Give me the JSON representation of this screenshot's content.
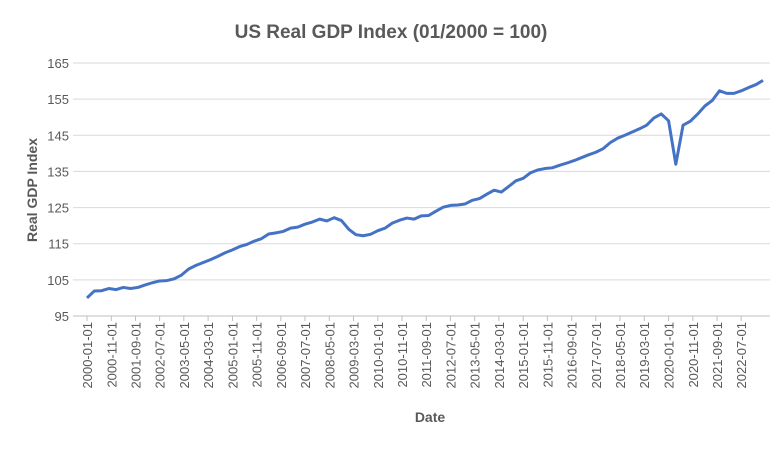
{
  "chart_data": {
    "type": "line",
    "title": "US Real GDP Index (01/2000 = 100)",
    "x_label": "Date",
    "y_label": "Real GDP Index",
    "x": [
      "2000-01-01",
      "2000-04-01",
      "2000-07-01",
      "2000-10-01",
      "2001-01-01",
      "2001-04-01",
      "2001-07-01",
      "2001-10-01",
      "2002-01-01",
      "2002-04-01",
      "2002-07-01",
      "2002-10-01",
      "2003-01-01",
      "2003-04-01",
      "2003-07-01",
      "2003-10-01",
      "2004-01-01",
      "2004-04-01",
      "2004-07-01",
      "2004-10-01",
      "2005-01-01",
      "2005-04-01",
      "2005-07-01",
      "2005-10-01",
      "2006-01-01",
      "2006-04-01",
      "2006-07-01",
      "2006-10-01",
      "2007-01-01",
      "2007-04-01",
      "2007-07-01",
      "2007-10-01",
      "2008-01-01",
      "2008-04-01",
      "2008-07-01",
      "2008-10-01",
      "2009-01-01",
      "2009-04-01",
      "2009-07-01",
      "2009-10-01",
      "2010-01-01",
      "2010-04-01",
      "2010-07-01",
      "2010-10-01",
      "2011-01-01",
      "2011-04-01",
      "2011-07-01",
      "2011-10-01",
      "2012-01-01",
      "2012-04-01",
      "2012-07-01",
      "2012-10-01",
      "2013-01-01",
      "2013-04-01",
      "2013-07-01",
      "2013-10-01",
      "2014-01-01",
      "2014-04-01",
      "2014-07-01",
      "2014-10-01",
      "2015-01-01",
      "2015-04-01",
      "2015-07-01",
      "2015-10-01",
      "2016-01-01",
      "2016-04-01",
      "2016-07-01",
      "2016-10-01",
      "2017-01-01",
      "2017-04-01",
      "2017-07-01",
      "2017-10-01",
      "2018-01-01",
      "2018-04-01",
      "2018-07-01",
      "2018-10-01",
      "2019-01-01",
      "2019-04-01",
      "2019-07-01",
      "2019-10-01",
      "2020-01-01",
      "2020-04-01",
      "2020-07-01",
      "2020-10-01",
      "2021-01-01",
      "2021-04-01",
      "2021-07-01",
      "2021-10-01",
      "2022-01-01",
      "2022-04-01",
      "2022-07-01",
      "2022-10-01",
      "2023-01-01",
      "2023-04-01"
    ],
    "series": [
      {
        "name": "Real GDP Index",
        "color": "#4472c4",
        "values": [
          100,
          101.9,
          102.0,
          102.6,
          102.3,
          102.9,
          102.6,
          102.9,
          103.6,
          104.2,
          104.7,
          104.8,
          105.3,
          106.3,
          108.0,
          109.0,
          109.8,
          110.6,
          111.5,
          112.5,
          113.3,
          114.2,
          114.8,
          115.7,
          116.4,
          117.7,
          118.0,
          118.4,
          119.3,
          119.6,
          120.4,
          121.0,
          121.8,
          121.3,
          122.2,
          121.4,
          119.0,
          117.5,
          117.2,
          117.6,
          118.6,
          119.3,
          120.7,
          121.5,
          122.1,
          121.8,
          122.7,
          122.8,
          124.0,
          125.1,
          125.6,
          125.7,
          126.0,
          127.0,
          127.5,
          128.7,
          129.8,
          129.3,
          130.8,
          132.4,
          133.1,
          134.6,
          135.4,
          135.8,
          136.0,
          136.7,
          137.3,
          138.0,
          138.8,
          139.6,
          140.3,
          141.3,
          143.0,
          144.2,
          145.0,
          145.9,
          146.8,
          147.8,
          149.8,
          150.9,
          149.0,
          137.0,
          147.8,
          148.9,
          150.9,
          153.1,
          154.6,
          157.3,
          156.6,
          156.6,
          157.3,
          158.2,
          159.0,
          160.2
        ]
      }
    ],
    "xlim": [
      "2000-01-01",
      "2023-04-01"
    ],
    "xticks": [
      "2000-01-01",
      "2000-11-01",
      "2001-09-01",
      "2002-07-01",
      "2003-05-01",
      "2004-03-01",
      "2005-01-01",
      "2005-11-01",
      "2006-09-01",
      "2007-07-01",
      "2008-05-01",
      "2009-03-01",
      "2010-01-01",
      "2010-11-01",
      "2011-09-01",
      "2012-07-01",
      "2013-05-01",
      "2014-03-01",
      "2015-01-01",
      "2015-11-01",
      "2016-09-01",
      "2017-07-01",
      "2018-05-01",
      "2019-03-01",
      "2020-01-01",
      "2020-11-01",
      "2021-09-01",
      "2022-07-01"
    ],
    "ylim": [
      95,
      165
    ],
    "yticks": [
      95,
      105,
      115,
      125,
      135,
      145,
      155,
      165
    ],
    "grid": true
  }
}
